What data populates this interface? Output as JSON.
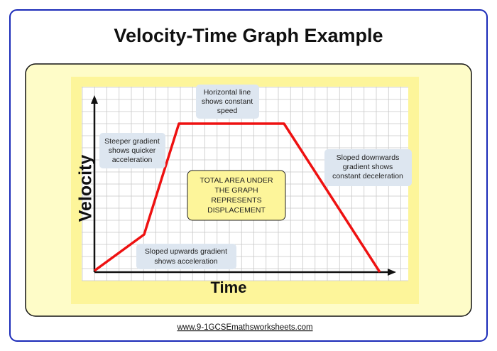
{
  "title": "Velocity-Time Graph Example",
  "graph": {
    "y_axis_label": "Velocity",
    "x_axis_label": "Time",
    "annotations": [
      {
        "lines": [
          "Horizontal line",
          "shows constant",
          "speed"
        ]
      },
      {
        "lines": [
          "Steeper gradient",
          "shows quicker",
          "acceleration"
        ]
      },
      {
        "lines": [
          "Sloped downwards",
          "gradient shows",
          "constant deceleration"
        ]
      },
      {
        "lines": [
          "Sloped upwards gradient",
          "shows acceleration"
        ]
      }
    ],
    "area_note": {
      "lines": [
        "TOTAL AREA UNDER",
        "THE GRAPH",
        "REPRESENTS",
        "DISPLACEMENT"
      ]
    }
  },
  "footer": {
    "url": "www.9-1GCSEmathsworksheets.com"
  }
}
